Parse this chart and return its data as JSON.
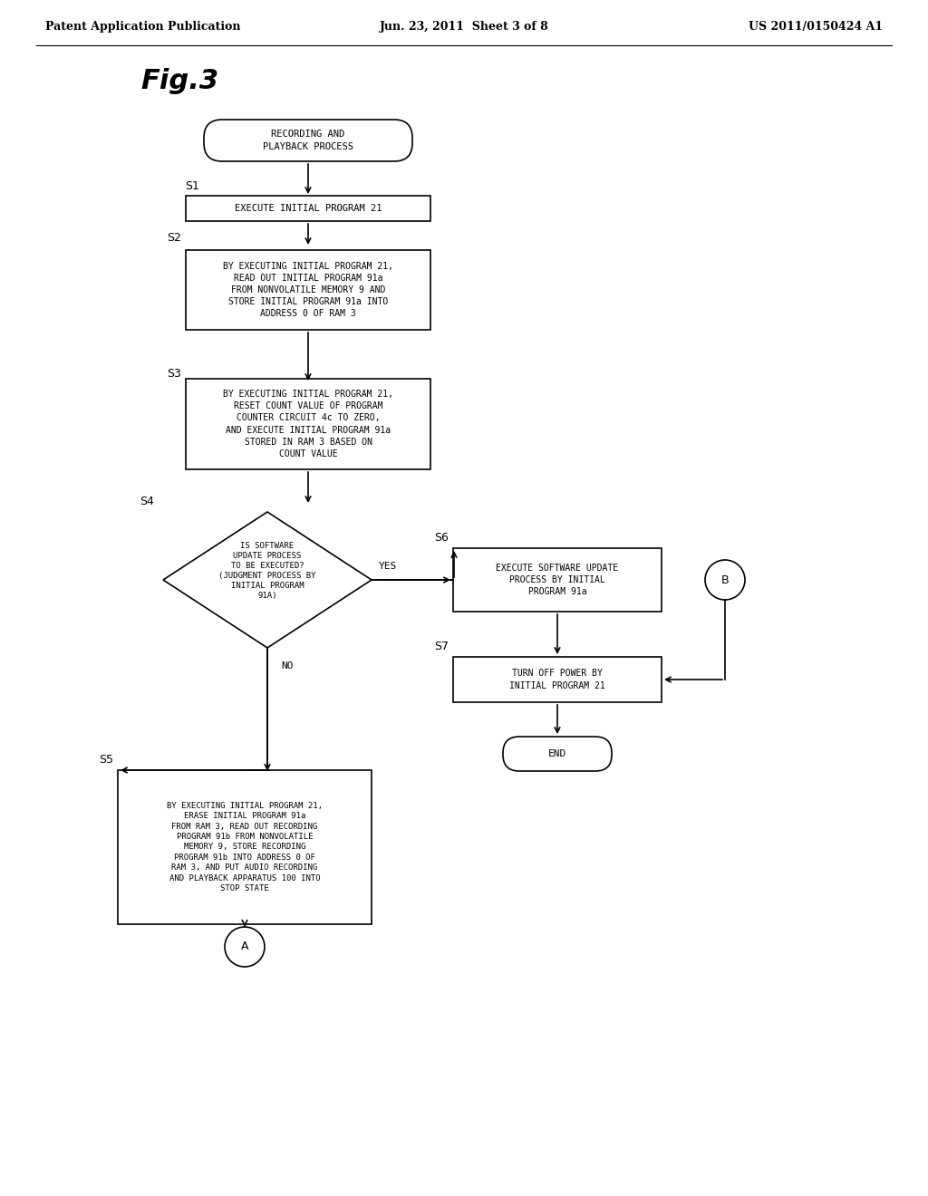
{
  "header_left": "Patent Application Publication",
  "header_mid": "Jun. 23, 2011  Sheet 3 of 8",
  "header_right": "US 2011/0150424 A1",
  "fig_label": "Fig.3",
  "bg_color": "#ffffff",
  "start_text": "RECORDING AND\nPLAYBACK PROCESS",
  "s1_text": "EXECUTE INITIAL PROGRAM 21",
  "s2_text": "BY EXECUTING INITIAL PROGRAM 21,\nREAD OUT INITIAL PROGRAM 91a\nFROM NONVOLATILE MEMORY 9 AND\nSTORE INITIAL PROGRAM 91a INTO\nADDRESS 0 OF RAM 3",
  "s3_text": "BY EXECUTING INITIAL PROGRAM 21,\nRESET COUNT VALUE OF PROGRAM\nCOUNTER CIRCUIT 4c TO ZERO,\nAND EXECUTE INITIAL PROGRAM 91a\nSTORED IN RAM 3 BASED ON\nCOUNT VALUE",
  "s4_text": "IS SOFTWARE\nUPDATE PROCESS\nTO BE EXECUTED?\n(JUDGMENT PROCESS BY\nINITIAL PROGRAM\n91A)",
  "s5_text": "BY EXECUTING INITIAL PROGRAM 21,\nERASE INITIAL PROGRAM 91a\nFROM RAM 3, READ OUT RECORDING\nPROGRAM 91b FROM NONVOLATILE\nMEMORY 9, STORE RECORDING\nPROGRAM 91b INTO ADDRESS 0 OF\nRAM 3, AND PUT AUDIO RECORDING\nAND PLAYBACK APPARATUS 100 INTO\nSTOP STATE",
  "s6_text": "EXECUTE SOFTWARE UPDATE\nPROCESS BY INITIAL\nPROGRAM 91a",
  "s7_text": "TURN OFF POWER BY\nINITIAL PROGRAM 21",
  "end_text": "END"
}
